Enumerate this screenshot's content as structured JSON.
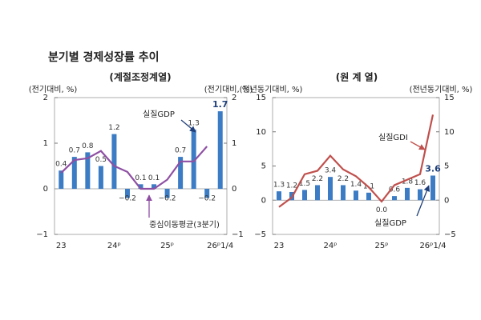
{
  "title": "분기별 경제성장률 추이",
  "chart_data": [
    {
      "type": "bar",
      "subtitle": "(계절조정계열)",
      "y_label": "(전기대비, %)",
      "y2_label": "(전기대비, %)",
      "categories": [
        "23",
        null,
        null,
        null,
        "24ᵖ",
        null,
        null,
        null,
        "25ᵖ",
        null,
        null,
        null,
        "26ᵖ1/4"
      ],
      "ylim": [
        -1,
        2
      ],
      "yticks": [
        {
          "value": -1,
          "label": "−1"
        },
        0,
        1,
        2
      ],
      "y2lim": [
        -1,
        2
      ],
      "y2ticks": [
        {
          "value": -1,
          "label": "−1"
        },
        0,
        1,
        2
      ],
      "series": [
        {
          "name": "실질GDP",
          "type": "bar",
          "color": "#3b7cc4",
          "values": [
            0.4,
            0.7,
            0.8,
            0.5,
            1.2,
            -0.2,
            0.1,
            0.1,
            -0.2,
            0.7,
            1.3,
            -0.2,
            1.7
          ],
          "value_labels": [
            "0.4",
            "0.7",
            "0.8",
            "0.5",
            "1.2",
            "−0.2",
            "0.1",
            "0.1",
            "−0.2",
            "0.7",
            "1.3",
            "−0.2",
            "1.7"
          ]
        },
        {
          "name": "중심이동평균(3분기)",
          "type": "line",
          "color": "#8e4fa3",
          "values": [
            0.35,
            0.63,
            0.67,
            0.83,
            0.5,
            0.37,
            0,
            0,
            0.2,
            0.6,
            0.6,
            0.93,
            null
          ]
        }
      ]
    },
    {
      "type": "bar",
      "subtitle": "(원 계 열)",
      "y_label": "(전년동기대비, %)",
      "y2_label": "(전년동기대비, %)",
      "categories": [
        "23",
        null,
        null,
        null,
        "24ᵖ",
        null,
        null,
        null,
        "25ᵖ",
        null,
        null,
        null,
        "26ᵖ1/4"
      ],
      "ylim": [
        -5,
        15
      ],
      "yticks": [
        {
          "value": -5,
          "label": "−5"
        },
        0,
        5,
        10,
        15
      ],
      "y2lim": [
        -5,
        15
      ],
      "y2ticks": [
        {
          "value": -5,
          "label": "−5"
        },
        0,
        5,
        10,
        15
      ],
      "series": [
        {
          "name": "실질GDP",
          "type": "bar",
          "color": "#3b7cc4",
          "values": [
            1.3,
            1.2,
            1.5,
            2.2,
            3.4,
            2.2,
            1.4,
            1.1,
            0.0,
            0.6,
            1.8,
            1.6,
            3.6
          ],
          "value_labels": [
            "1.3",
            "1.2",
            "1.5",
            "2.2",
            "3.4",
            "2.2",
            "1.4",
            "1.1",
            "0.0",
            "0.6",
            "1.8",
            "1.6",
            "3.6"
          ]
        },
        {
          "name": "실질GDI",
          "type": "line",
          "color": "#c0504d",
          "values": [
            -1.0,
            0.4,
            3.8,
            4.3,
            6.5,
            4.5,
            3.5,
            1.9,
            -0.2,
            2.2,
            3.0,
            3.8,
            12.5
          ]
        }
      ]
    }
  ]
}
